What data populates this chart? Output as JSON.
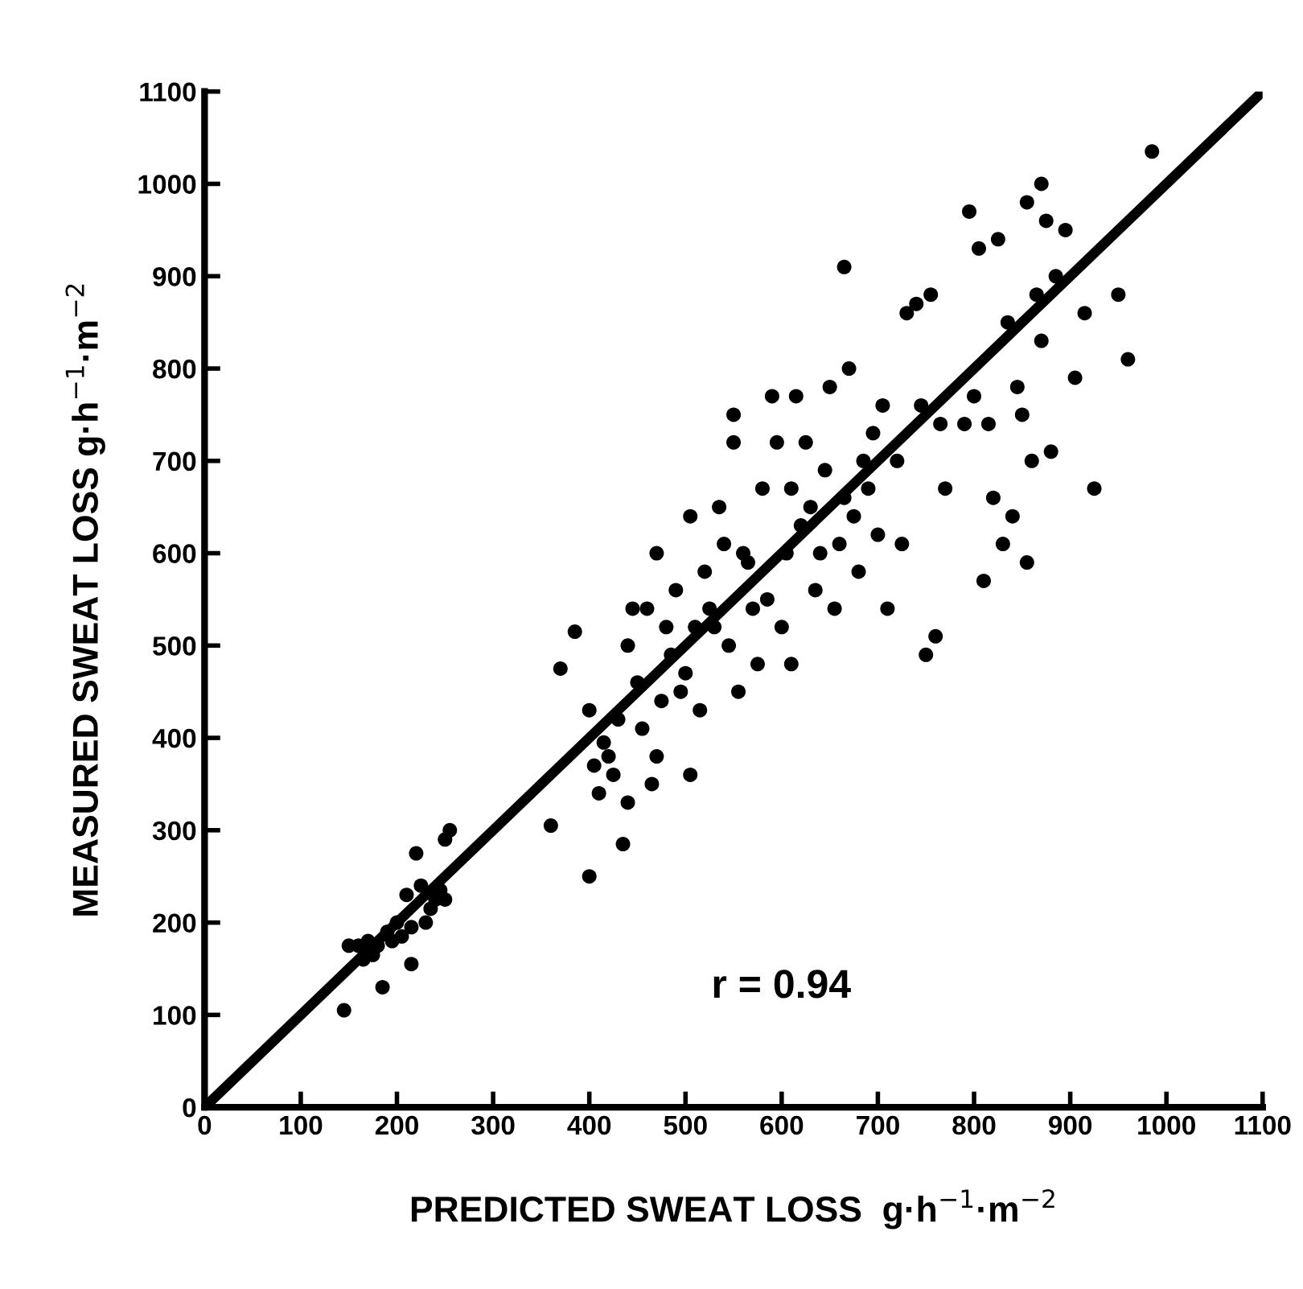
{
  "chart_data": {
    "type": "scatter",
    "xlabel": "PREDICTED SWEAT LOSS  g·h$^{−1}$·m$^{−2}$",
    "ylabel": "MEASURED SWEAT LOSS g·h$^{−1}$·m$^{−2}$",
    "xlim": [
      0,
      1100
    ],
    "ylim": [
      0,
      1100
    ],
    "xticks": [
      0,
      100,
      200,
      300,
      400,
      500,
      600,
      700,
      800,
      900,
      1000,
      1100
    ],
    "yticks": [
      0,
      100,
      200,
      300,
      400,
      500,
      600,
      700,
      800,
      900,
      1000,
      1100
    ],
    "grid": false,
    "marker": "circle",
    "annotations": [
      "r = 0.94"
    ],
    "series": [
      {
        "color": "#000000",
        "x": [
          145,
          150,
          160,
          165,
          170,
          175,
          180,
          185,
          190,
          195,
          200,
          205,
          210,
          215,
          215,
          220,
          225,
          230,
          235,
          240,
          245,
          250,
          255,
          250,
          360,
          370,
          385,
          400,
          400,
          405,
          410,
          415,
          420,
          425,
          430,
          435,
          440,
          440,
          445,
          450,
          455,
          460,
          465,
          470,
          470,
          475,
          480,
          485,
          490,
          495,
          500,
          505,
          505,
          510,
          515,
          520,
          525,
          530,
          535,
          540,
          545,
          550,
          550,
          555,
          560,
          565,
          570,
          575,
          580,
          585,
          590,
          595,
          600,
          605,
          610,
          610,
          615,
          620,
          625,
          630,
          635,
          640,
          645,
          650,
          655,
          660,
          665,
          665,
          670,
          675,
          680,
          685,
          690,
          695,
          700,
          705,
          710,
          720,
          725,
          730,
          740,
          745,
          750,
          755,
          760,
          765,
          770,
          790,
          795,
          800,
          805,
          810,
          815,
          820,
          825,
          830,
          835,
          840,
          845,
          850,
          855,
          855,
          860,
          865,
          870,
          870,
          875,
          880,
          885,
          895,
          905,
          915,
          925,
          950,
          960,
          985
        ],
        "values": [
          105,
          175,
          175,
          160,
          180,
          165,
          175,
          130,
          190,
          180,
          200,
          185,
          230,
          155,
          195,
          275,
          240,
          200,
          215,
          225,
          235,
          290,
          300,
          225,
          305,
          475,
          515,
          250,
          430,
          370,
          340,
          395,
          380,
          360,
          420,
          285,
          500,
          330,
          540,
          460,
          410,
          540,
          350,
          600,
          380,
          440,
          520,
          490,
          560,
          450,
          470,
          640,
          360,
          520,
          430,
          580,
          540,
          520,
          650,
          610,
          500,
          750,
          720,
          450,
          600,
          590,
          540,
          480,
          670,
          550,
          770,
          720,
          520,
          600,
          480,
          670,
          770,
          630,
          720,
          650,
          560,
          600,
          690,
          780,
          540,
          610,
          910,
          660,
          800,
          640,
          580,
          700,
          670,
          730,
          620,
          760,
          540,
          700,
          610,
          860,
          870,
          760,
          490,
          880,
          510,
          740,
          670,
          740,
          970,
          770,
          930,
          570,
          740,
          660,
          940,
          610,
          850,
          640,
          780,
          750,
          980,
          590,
          700,
          880,
          1000,
          830,
          960,
          710,
          900,
          950,
          790,
          860,
          670,
          880,
          810,
          1035
        ]
      },
      {
        "type": "line",
        "color": "#000000",
        "line_style": "solid",
        "marker": "none",
        "x": [
          0,
          1100
        ],
        "values": [
          0,
          1100
        ]
      }
    ]
  }
}
